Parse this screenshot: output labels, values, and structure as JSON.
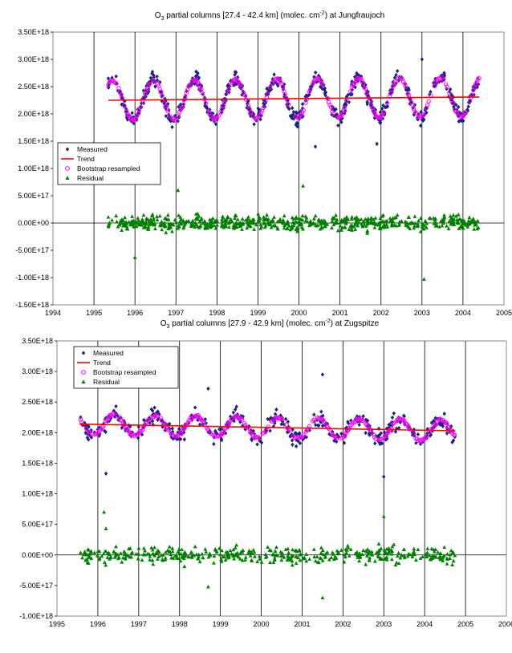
{
  "chart_data": [
    {
      "type": "scatter",
      "title": {
        "prefix": "O",
        "sub": "3",
        "middle": " partial columns [27.4 - 42.4 km] (molec. cm",
        "sup": "-2",
        "suffix": ") at Jungfraujoch"
      },
      "xlim": [
        1994,
        2005
      ],
      "ylim": [
        -1.5e+18,
        3.5e+18
      ],
      "xticks": [
        "1994",
        "1995",
        "1996",
        "1997",
        "1998",
        "1999",
        "2000",
        "2001",
        "2002",
        "2003",
        "2004",
        "2005"
      ],
      "yticks": [
        "-1.50E+18",
        "-1.00E+18",
        "-5.00E+17",
        "0.00E+00",
        "5.00E+17",
        "1.00E+18",
        "1.50E+18",
        "2.00E+18",
        "2.50E+18",
        "3.00E+18",
        "3.50E+18"
      ],
      "grid": {
        "vertical": true,
        "horizontal": false
      },
      "legend_position": "left-middle",
      "colors": {
        "measured": "#1a237e",
        "trend": "#ff0000",
        "bootstrap": "#ff00ff",
        "residual": "#008000"
      },
      "legend": [
        "Measured",
        "Trend",
        "Bootstrap resampled",
        "Residual"
      ],
      "data_span": [
        1995.35,
        2004.4
      ],
      "trend": {
        "x": [
          1995.35,
          2004.4
        ],
        "y": [
          2.25e+18,
          2.31e+18
        ]
      },
      "seasonal": {
        "mean": 2.27e+18,
        "amplitude": 3.6e+17,
        "peak_phase": 0.45
      },
      "approx_measured_points": 650,
      "measured_highlights": [
        [
          2003.0,
          3e+18
        ],
        [
          2000.4,
          1.4e+18
        ],
        [
          2001.9,
          1.45e+18
        ]
      ],
      "residual_highlights": [
        [
          1996.0,
          -6.3e+17
        ],
        [
          2000.1,
          6.8e+17
        ],
        [
          2003.05,
          -1.03e+18
        ],
        [
          1997.05,
          6e+17
        ]
      ]
    },
    {
      "type": "scatter",
      "title": {
        "prefix": "O",
        "sub": "3",
        "middle": " partial columns [27.9 - 42.9 km] (molec. cm",
        "sup": "-2",
        "suffix": ") at Zugspitze"
      },
      "xlim": [
        1995,
        2006
      ],
      "ylim": [
        -1e+18,
        3.5e+18
      ],
      "xticks": [
        "1995",
        "1996",
        "1997",
        "1998",
        "1999",
        "2000",
        "2001",
        "2002",
        "2003",
        "2004",
        "2005",
        "2006"
      ],
      "yticks": [
        "-1.00E+18",
        "-5.00E+17",
        "0.00E+00",
        "5.00E+17",
        "1.00E+18",
        "1.50E+18",
        "2.00E+18",
        "2.50E+18",
        "3.00E+18",
        "3.50E+18"
      ],
      "grid": {
        "vertical": true,
        "horizontal": false
      },
      "legend_position": "top-left",
      "colors": {
        "measured": "#1a237e",
        "trend": "#ff0000",
        "bootstrap": "#ff00ff",
        "residual": "#008000"
      },
      "legend": [
        "Measured",
        "Trend",
        "Bootstrap resampled",
        "Residual"
      ],
      "data_span": [
        1995.55,
        2004.75
      ],
      "trend": {
        "x": [
          1995.55,
          2004.75
        ],
        "y": [
          2.14e+18,
          2.03e+18
        ]
      },
      "seasonal": {
        "mean": 2.1e+18,
        "amplitude": 1.7e+17,
        "peak_phase": 0.4
      },
      "approx_measured_points": 450,
      "measured_highlights": [
        [
          2001.5,
          2.95e+18
        ],
        [
          1996.2,
          1.33e+18
        ],
        [
          2003.0,
          1.28e+18
        ],
        [
          1998.7,
          2.72e+18
        ]
      ],
      "residual_highlights": [
        [
          1996.15,
          7e+17
        ],
        [
          2001.5,
          -7e+17
        ],
        [
          2003.0,
          6.3e+17
        ],
        [
          1996.2,
          4.3e+17
        ],
        [
          1998.7,
          -5.2e+17
        ]
      ]
    }
  ]
}
